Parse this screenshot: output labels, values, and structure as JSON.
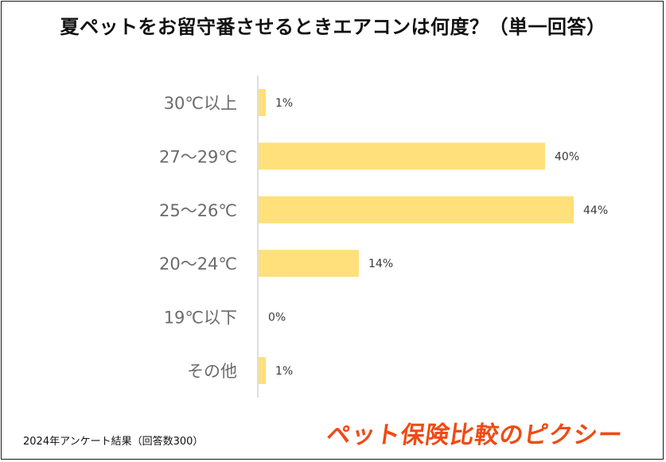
{
  "chart_data": {
    "type": "bar",
    "orientation": "horizontal",
    "title": "夏ペットをお留守番させるときエアコンは何度？（単一回答）",
    "categories": [
      "30℃以上",
      "27〜29℃",
      "25〜26℃",
      "20〜24℃",
      "19℃以下",
      "その他"
    ],
    "values": [
      1,
      40,
      44,
      14,
      0,
      1
    ],
    "value_labels": [
      "1%",
      "40%",
      "44%",
      "14%",
      "0%",
      "1%"
    ],
    "unit": "%",
    "xlim": [
      0,
      44
    ],
    "grid": false,
    "legend": "none",
    "bar_color": "#ffe07a",
    "axis_color": "#d4d4d4"
  },
  "footnote": "2024年アンケート結果（回答数300）",
  "brand": {
    "name": "ペット保険比較のピクシー",
    "color": "#f04a14"
  }
}
